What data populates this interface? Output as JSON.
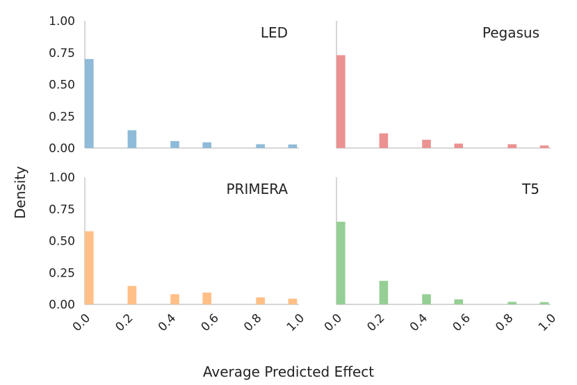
{
  "chart_data": {
    "type": "bar",
    "subtype": "histogram-facets",
    "xlabel": "Average Predicted Effect",
    "ylabel": "Density",
    "xlim": [
      0.0,
      1.0
    ],
    "ylim": [
      0.0,
      1.0
    ],
    "x_ticks": [
      "0.0",
      "0.2",
      "0.4",
      "0.6",
      "0.8",
      "1.0"
    ],
    "y_ticks": [
      "0.00",
      "0.25",
      "0.50",
      "0.75",
      "1.00"
    ],
    "bin_width": 0.05,
    "panels": [
      {
        "title": "LED",
        "color": "#8fbbd9",
        "bins": [
          {
            "x0": 0.0,
            "value": 0.7
          },
          {
            "x0": 0.2,
            "value": 0.14
          },
          {
            "x0": 0.4,
            "value": 0.055
          },
          {
            "x0": 0.55,
            "value": 0.045
          },
          {
            "x0": 0.8,
            "value": 0.03
          },
          {
            "x0": 0.95,
            "value": 0.028
          }
        ]
      },
      {
        "title": "Pegasus",
        "color": "#eb9191",
        "bins": [
          {
            "x0": 0.0,
            "value": 0.73
          },
          {
            "x0": 0.2,
            "value": 0.115
          },
          {
            "x0": 0.4,
            "value": 0.065
          },
          {
            "x0": 0.55,
            "value": 0.035
          },
          {
            "x0": 0.8,
            "value": 0.03
          },
          {
            "x0": 0.95,
            "value": 0.02
          }
        ]
      },
      {
        "title": "PRIMERA",
        "color": "#ffbf86",
        "bins": [
          {
            "x0": 0.0,
            "value": 0.575
          },
          {
            "x0": 0.2,
            "value": 0.145
          },
          {
            "x0": 0.4,
            "value": 0.08
          },
          {
            "x0": 0.55,
            "value": 0.093
          },
          {
            "x0": 0.8,
            "value": 0.055
          },
          {
            "x0": 0.95,
            "value": 0.045
          }
        ]
      },
      {
        "title": "T5",
        "color": "#95cf95",
        "bins": [
          {
            "x0": 0.0,
            "value": 0.65
          },
          {
            "x0": 0.2,
            "value": 0.185
          },
          {
            "x0": 0.4,
            "value": 0.08
          },
          {
            "x0": 0.55,
            "value": 0.04
          },
          {
            "x0": 0.8,
            "value": 0.02
          },
          {
            "x0": 0.95,
            "value": 0.018
          }
        ]
      }
    ]
  }
}
